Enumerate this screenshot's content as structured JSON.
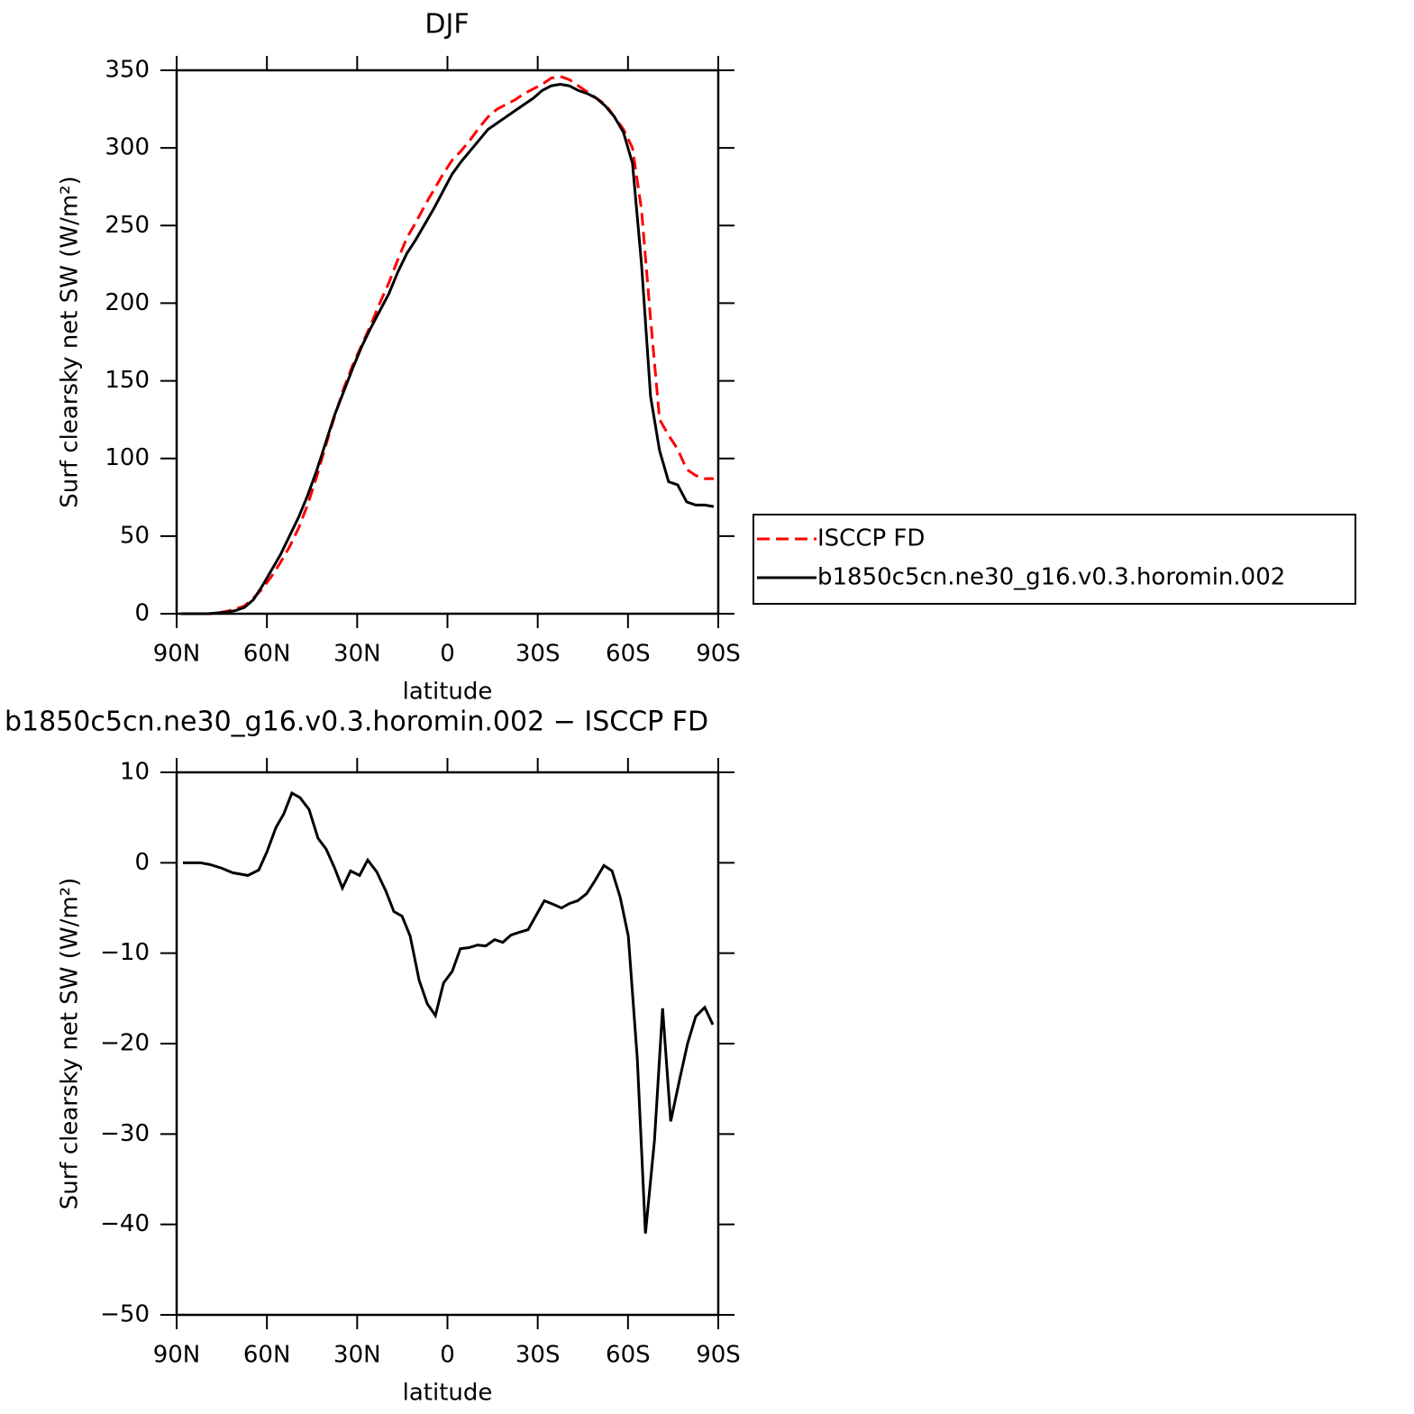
{
  "chart_data": [
    {
      "type": "line",
      "title": "DJF",
      "xlabel": "latitude",
      "ylabel": "Surf clearsky net SW (W/m²)",
      "xlim": [
        90,
        -90
      ],
      "xticks": [
        {
          "value": 90,
          "label": "90N"
        },
        {
          "value": 60,
          "label": "60N"
        },
        {
          "value": 30,
          "label": "30N"
        },
        0,
        {
          "value": -30,
          "label": "30S"
        },
        {
          "value": -60,
          "label": "60S"
        },
        {
          "value": -90,
          "label": "90S"
        }
      ],
      "ylim": [
        0,
        350
      ],
      "yticks": [
        0,
        50,
        100,
        150,
        200,
        250,
        300,
        350
      ],
      "legend": "right",
      "x": [
        88.5,
        85.5,
        82.5,
        79.5,
        76.5,
        73.5,
        70.5,
        67.5,
        64.5,
        61.5,
        58.5,
        55.5,
        52.5,
        49.5,
        46.5,
        43.5,
        40.5,
        37.5,
        34.5,
        31.5,
        28.5,
        25.5,
        22.5,
        19.5,
        16.5,
        13.5,
        10.5,
        7.5,
        4.5,
        1.5,
        -1.5,
        -4.5,
        -7.5,
        -10.5,
        -13.5,
        -16.5,
        -19.5,
        -22.5,
        -25.5,
        -28.5,
        -31.5,
        -34.5,
        -37.5,
        -40.5,
        -43.5,
        -46.5,
        -49.5,
        -52.5,
        -55.5,
        -58.5,
        -61.5,
        -64.5,
        -67.5,
        -70.5,
        -73.5,
        -76.5,
        -79.5,
        -82.5,
        -85.5,
        -88.5
      ],
      "series": [
        {
          "name": "ISCCP FD",
          "color": "#ff0000",
          "dashed": true,
          "values": [
            0,
            0,
            0,
            0,
            0.5,
            1.5,
            3,
            5,
            10,
            16,
            24,
            33,
            43,
            55,
            70,
            88,
            108,
            127,
            145,
            160,
            173,
            186,
            200,
            213,
            228,
            242,
            252,
            263,
            273,
            283,
            292,
            298,
            305,
            313,
            320,
            325,
            328,
            331,
            335,
            338,
            341,
            345,
            346,
            344,
            340,
            336,
            332,
            328,
            320,
            312,
            300,
            260,
            190,
            125,
            115,
            106,
            93,
            89,
            87,
            87
          ]
        },
        {
          "name": "b1850c5cn.ne30_g16.v0.3.horomin.002",
          "color": "#000000",
          "dashed": false,
          "values": [
            0,
            0,
            0,
            0,
            0.5,
            1,
            2,
            4,
            9,
            18,
            28,
            38,
            50,
            62,
            76,
            92,
            110,
            128,
            143,
            158,
            172,
            184,
            195,
            206,
            220,
            232,
            241,
            251,
            261,
            272,
            283,
            291,
            298,
            305,
            312,
            316,
            320,
            324,
            328,
            332,
            337,
            340,
            341,
            340,
            337,
            335,
            332,
            327,
            320,
            310,
            290,
            225,
            140,
            105,
            85,
            83,
            72,
            70,
            70,
            69
          ]
        }
      ]
    },
    {
      "type": "line",
      "title": "b1850c5cn.ne30_g16.v0.3.horomin.002 − ISCCP FD",
      "xlabel": "latitude",
      "ylabel": "Surf clearsky net SW (W/m²)",
      "xlim": [
        90,
        -90
      ],
      "xticks": [
        {
          "value": 90,
          "label": "90N"
        },
        {
          "value": 60,
          "label": "60N"
        },
        {
          "value": 30,
          "label": "30N"
        },
        0,
        {
          "value": -30,
          "label": "30S"
        },
        {
          "value": -60,
          "label": "60S"
        },
        {
          "value": -90,
          "label": "90S"
        }
      ],
      "ylim": [
        -50,
        10
      ],
      "yticks": [
        {
          "value": -50,
          "label": "−50"
        },
        {
          "value": -40,
          "label": "−40"
        },
        {
          "value": -30,
          "label": "−30"
        },
        {
          "value": -20,
          "label": "−20"
        },
        {
          "value": -10,
          "label": "−10"
        },
        0,
        10
      ],
      "color": "#000000",
      "x": [
        87.9,
        82.2,
        78.9,
        75.0,
        71.4,
        66.3,
        62.7,
        60.0,
        57.0,
        54.4,
        51.7,
        49.0,
        46.0,
        43.0,
        40.3,
        37.6,
        34.9,
        32.2,
        29.2,
        26.5,
        23.5,
        20.5,
        17.8,
        15.1,
        12.4,
        9.4,
        6.7,
        4.0,
        1.3,
        -1.6,
        -4.3,
        -7.0,
        -10.0,
        -12.7,
        -15.7,
        -18.4,
        -21.1,
        -23.8,
        -26.8,
        -29.5,
        -32.2,
        -35.2,
        -37.9,
        -40.6,
        -43.3,
        -46.3,
        -49.0,
        -52.0,
        -54.7,
        -57.4,
        -60.1,
        -63.1,
        -65.8,
        -68.8,
        -71.5,
        -74.2,
        -77.2,
        -79.8,
        -82.5,
        -85.5,
        -88.2
      ],
      "values": [
        0,
        0,
        -0.2,
        -0.6,
        -1.1,
        -1.4,
        -0.8,
        1.2,
        3.9,
        5.4,
        7.7,
        7.2,
        5.9,
        2.7,
        1.5,
        -0.5,
        -2.8,
        -0.9,
        -1.4,
        0.3,
        -1.0,
        -3.1,
        -5.4,
        -5.9,
        -8.1,
        -13.0,
        -15.6,
        -16.9,
        -13.3,
        -12.0,
        -9.5,
        -9.4,
        -9.1,
        -9.2,
        -8.5,
        -8.8,
        -8.0,
        -7.7,
        -7.4,
        -5.8,
        -4.2,
        -4.6,
        -5.0,
        -4.5,
        -4.2,
        -3.4,
        -2.0,
        -0.3,
        -0.9,
        -3.8,
        -8.1,
        -21.7,
        -41.0,
        -30.7,
        -16.1,
        -28.6,
        -23.9,
        -20.0,
        -17.0,
        -16.0,
        -17.9
      ]
    }
  ]
}
